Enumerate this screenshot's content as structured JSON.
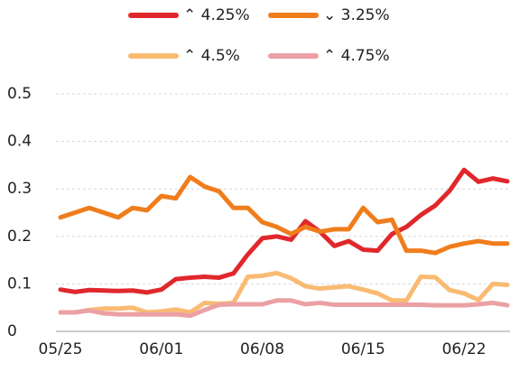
{
  "chart_data": {
    "type": "line",
    "categories": [
      "05/25",
      null,
      null,
      null,
      null,
      null,
      null,
      "06/01",
      null,
      null,
      null,
      null,
      null,
      null,
      "06/08",
      null,
      null,
      null,
      null,
      null,
      null,
      "06/15",
      null,
      null,
      null,
      null,
      null,
      null,
      "06/22",
      null,
      null,
      null
    ],
    "series": [
      {
        "name": "⌃ 4.25%",
        "color": "#e0282c",
        "values": [
          0.088,
          0.083,
          0.087,
          0.086,
          0.085,
          0.086,
          0.082,
          0.088,
          0.11,
          0.113,
          0.115,
          0.113,
          0.122,
          0.162,
          0.196,
          0.2,
          0.193,
          0.232,
          0.21,
          0.18,
          0.19,
          0.172,
          0.17,
          0.205,
          0.22,
          0.245,
          0.265,
          0.296,
          0.34,
          0.315,
          0.322,
          0.316
        ]
      },
      {
        "name": "⌄ 3.25%",
        "color": "#f07d1c",
        "values": [
          0.24,
          0.25,
          0.26,
          0.25,
          0.24,
          0.26,
          0.255,
          0.285,
          0.28,
          0.325,
          0.305,
          0.295,
          0.26,
          0.26,
          0.23,
          0.22,
          0.205,
          0.22,
          0.21,
          0.215,
          0.215,
          0.26,
          0.23,
          0.235,
          0.17,
          0.17,
          0.165,
          0.178,
          0.185,
          0.19,
          0.185,
          0.185
        ]
      },
      {
        "name": "⌃ 4.5%",
        "color": "#f9bb72",
        "values": [
          0.04,
          0.04,
          0.045,
          0.048,
          0.048,
          0.05,
          0.04,
          0.042,
          0.046,
          0.04,
          0.06,
          0.058,
          0.06,
          0.115,
          0.117,
          0.123,
          0.112,
          0.095,
          0.09,
          0.093,
          0.095,
          0.088,
          0.08,
          0.065,
          0.065,
          0.115,
          0.114,
          0.087,
          0.08,
          0.066,
          0.1,
          0.098
        ]
      },
      {
        "name": "⌃ 4.75%",
        "color": "#eba1a4",
        "values": [
          0.04,
          0.04,
          0.044,
          0.038,
          0.036,
          0.036,
          0.036,
          0.036,
          0.036,
          0.033,
          0.045,
          0.056,
          0.057,
          0.057,
          0.057,
          0.065,
          0.065,
          0.057,
          0.06,
          0.056,
          0.056,
          0.056,
          0.056,
          0.056,
          0.056,
          0.056,
          0.055,
          0.055,
          0.055,
          0.057,
          0.06,
          0.055
        ]
      }
    ],
    "ylim": [
      0,
      0.5
    ],
    "yticks": [
      0,
      0.1,
      0.2,
      0.3,
      0.4,
      0.5
    ],
    "grid": true
  }
}
